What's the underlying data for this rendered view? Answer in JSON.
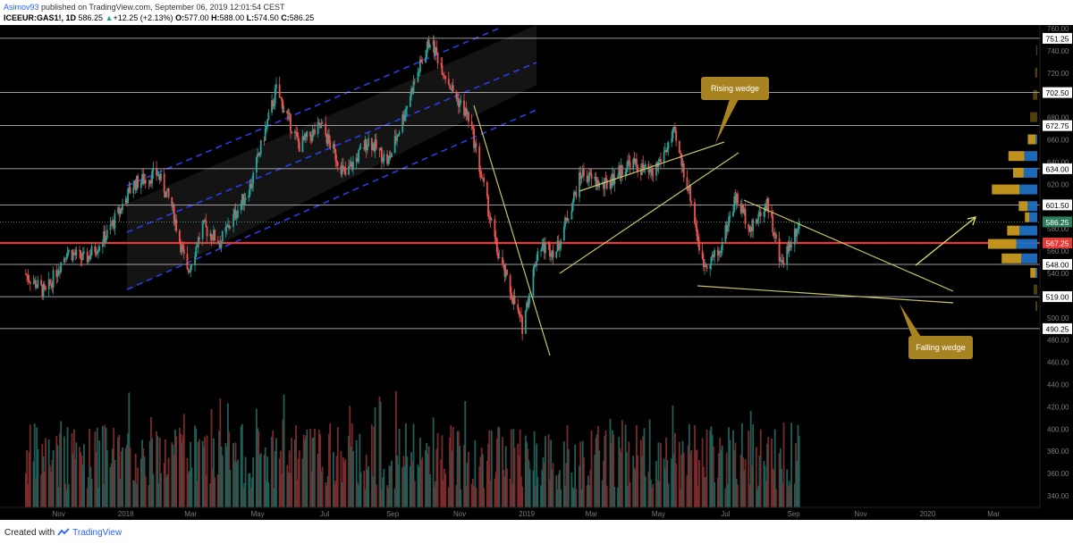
{
  "header": {
    "author": "Asimov93",
    "published_text": "published on TradingView.com, September 06, 2019 12:01:54 CEST",
    "symbol": "ICEEUR:GAS1!, 1D",
    "last": "586.25",
    "change": "+12.25 (+2.13%)",
    "open_label": "O:",
    "open": "577.00",
    "high_label": "H:",
    "high": "588.00",
    "low_label": "L:",
    "low": "574.50",
    "close_label": "C:",
    "close": "586.25"
  },
  "footer": {
    "created_with": "Created with",
    "brand": "TradingView"
  },
  "colors": {
    "background": "#000000",
    "up": "#26a69a",
    "down": "#ef5350",
    "channel": "#2a3ee8",
    "wedge": "#c8c46a",
    "annotation": "#a88322",
    "current_price": "#2e7d5f",
    "highlight_level": "#e53935",
    "profile_gold": "#c89a1e",
    "profile_blue": "#1e6fc2"
  },
  "chart_data": {
    "type": "candlestick",
    "ylim": [
      330,
      770
    ],
    "volume_ylim": [
      0,
      1
    ],
    "y_ticks": [
      "760.00",
      "740.00",
      "720.00",
      "700.00",
      "680.00",
      "660.00",
      "640.00",
      "620.00",
      "600.00",
      "580.00",
      "560.00",
      "540.00",
      "520.00",
      "500.00",
      "480.00",
      "460.00",
      "440.00",
      "420.00",
      "400.00",
      "380.00",
      "360.00",
      "340.00"
    ],
    "x_ticks": [
      "Nov",
      "2018",
      "Mar",
      "May",
      "Jul",
      "Sep",
      "Nov",
      "2019",
      "Mar",
      "May",
      "Jul",
      "Sep",
      "Nov",
      "2020",
      "Mar"
    ],
    "level_labels": [
      "751.25",
      "702.50",
      "672.75",
      "634.00",
      "601.50",
      "586.25",
      "567.25",
      "548.00",
      "519.00",
      "490.25"
    ],
    "levels": [
      751.25,
      702.5,
      672.75,
      634,
      601.5,
      548,
      519,
      490.25
    ],
    "current_price": 586.25,
    "highlight_level": 567.25,
    "annotations": [
      {
        "text": "Rising wedge"
      },
      {
        "text": "Falling wedge"
      }
    ],
    "price_anchors": [
      [
        "2017-10-01",
        540
      ],
      [
        "2017-10-20",
        522
      ],
      [
        "2017-11-08",
        560
      ],
      [
        "2017-11-25",
        552
      ],
      [
        "2017-12-15",
        575
      ],
      [
        "2018-01-08",
        620
      ],
      [
        "2018-01-30",
        630
      ],
      [
        "2018-02-12",
        600
      ],
      [
        "2018-02-26",
        540
      ],
      [
        "2018-03-12",
        582
      ],
      [
        "2018-03-28",
        568
      ],
      [
        "2018-04-25",
        620
      ],
      [
        "2018-05-18",
        705
      ],
      [
        "2018-06-08",
        655
      ],
      [
        "2018-06-28",
        672
      ],
      [
        "2018-07-20",
        628
      ],
      [
        "2018-08-10",
        660
      ],
      [
        "2018-08-28",
        640
      ],
      [
        "2018-09-20",
        710
      ],
      [
        "2018-10-05",
        750
      ],
      [
        "2018-10-25",
        705
      ],
      [
        "2018-11-10",
        678
      ],
      [
        "2018-12-05",
        560
      ],
      [
        "2018-12-28",
        492
      ],
      [
        "2019-01-12",
        565
      ],
      [
        "2019-01-28",
        560
      ],
      [
        "2019-02-20",
        630
      ],
      [
        "2019-03-12",
        618
      ],
      [
        "2019-04-05",
        640
      ],
      [
        "2019-04-25",
        628
      ],
      [
        "2019-05-15",
        665
      ],
      [
        "2019-05-30",
        610
      ],
      [
        "2019-06-10",
        548
      ],
      [
        "2019-06-25",
        558
      ],
      [
        "2019-07-10",
        608
      ],
      [
        "2019-07-25",
        580
      ],
      [
        "2019-08-08",
        605
      ],
      [
        "2019-08-20",
        548
      ],
      [
        "2019-09-06",
        586.25
      ]
    ],
    "volume_profile": [
      {
        "price": 740,
        "gold": 0.03,
        "blue": 0.0
      },
      {
        "price": 720,
        "gold": 0.06,
        "blue": 0.0
      },
      {
        "price": 700,
        "gold": 0.12,
        "blue": 0.0
      },
      {
        "price": 680,
        "gold": 0.2,
        "blue": 0.0
      },
      {
        "price": 660,
        "gold": 0.22,
        "blue": 0.05
      },
      {
        "price": 645,
        "gold": 0.45,
        "blue": 0.4
      },
      {
        "price": 630,
        "gold": 0.3,
        "blue": 0.42
      },
      {
        "price": 615,
        "gold": 0.78,
        "blue": 0.55
      },
      {
        "price": 600,
        "gold": 0.25,
        "blue": 0.3
      },
      {
        "price": 590,
        "gold": 0.12,
        "blue": 0.25
      },
      {
        "price": 578,
        "gold": 0.35,
        "blue": 0.55
      },
      {
        "price": 566,
        "gold": 0.8,
        "blue": 0.65
      },
      {
        "price": 553,
        "gold": 0.55,
        "blue": 0.5
      },
      {
        "price": 540,
        "gold": 0.15,
        "blue": 0.05
      },
      {
        "price": 525,
        "gold": 0.1,
        "blue": 0.0
      },
      {
        "price": 510,
        "gold": 0.05,
        "blue": 0.0
      }
    ]
  }
}
